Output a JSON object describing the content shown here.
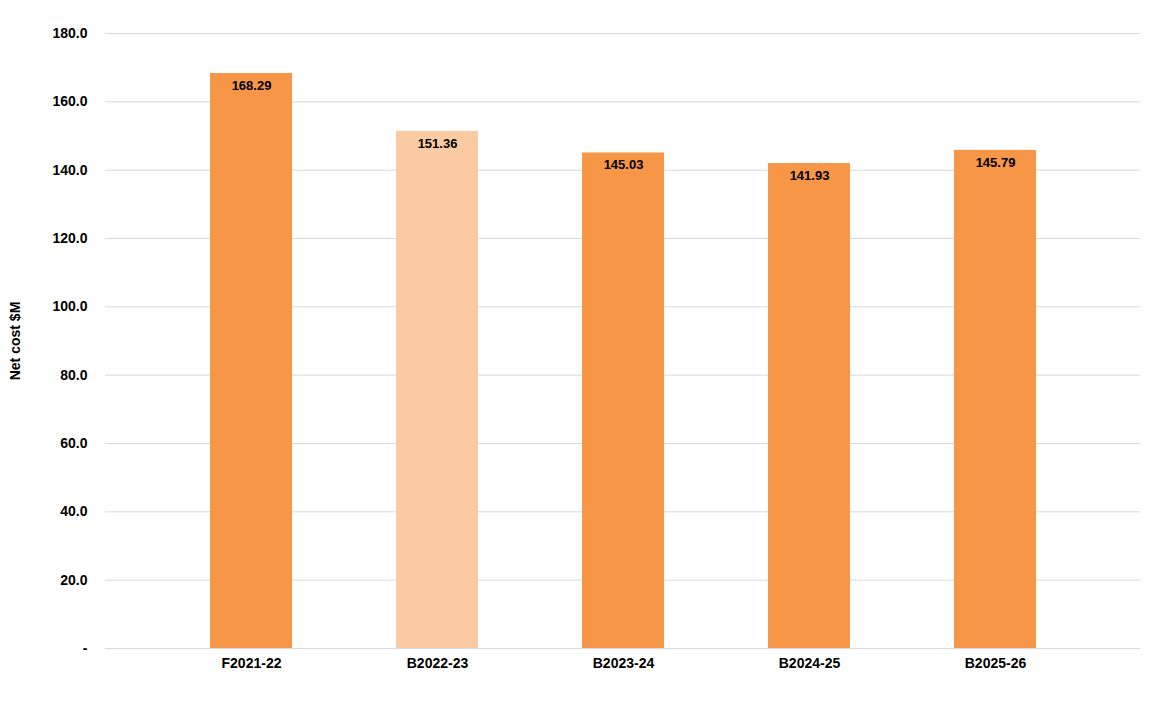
{
  "chart_data": {
    "type": "bar",
    "y_label": "Net cost $M",
    "categories": [
      "F2021-22",
      "B2022-23",
      "B2023-24",
      "B2024-25",
      "B2025-26"
    ],
    "values": [
      168.29,
      151.36,
      145.03,
      141.93,
      145.79
    ],
    "colors": [
      "#f79646",
      "#facba2",
      "#f79646",
      "#f79646",
      "#f79646"
    ],
    "ylim": [
      0,
      180
    ],
    "yticks": [
      {
        "value": 0,
        "label": "-"
      },
      {
        "value": 20,
        "label": "20.0"
      },
      {
        "value": 40,
        "label": "40.0"
      },
      {
        "value": 60,
        "label": "60.0"
      },
      {
        "value": 80,
        "label": "80.0"
      },
      {
        "value": 100,
        "label": "100.0"
      },
      {
        "value": 120,
        "label": "120.0"
      },
      {
        "value": 140,
        "label": "140.0"
      },
      {
        "value": 160,
        "label": "160.0"
      },
      {
        "value": 180,
        "label": "180.0"
      }
    ],
    "grid": true,
    "data_labels": true
  }
}
